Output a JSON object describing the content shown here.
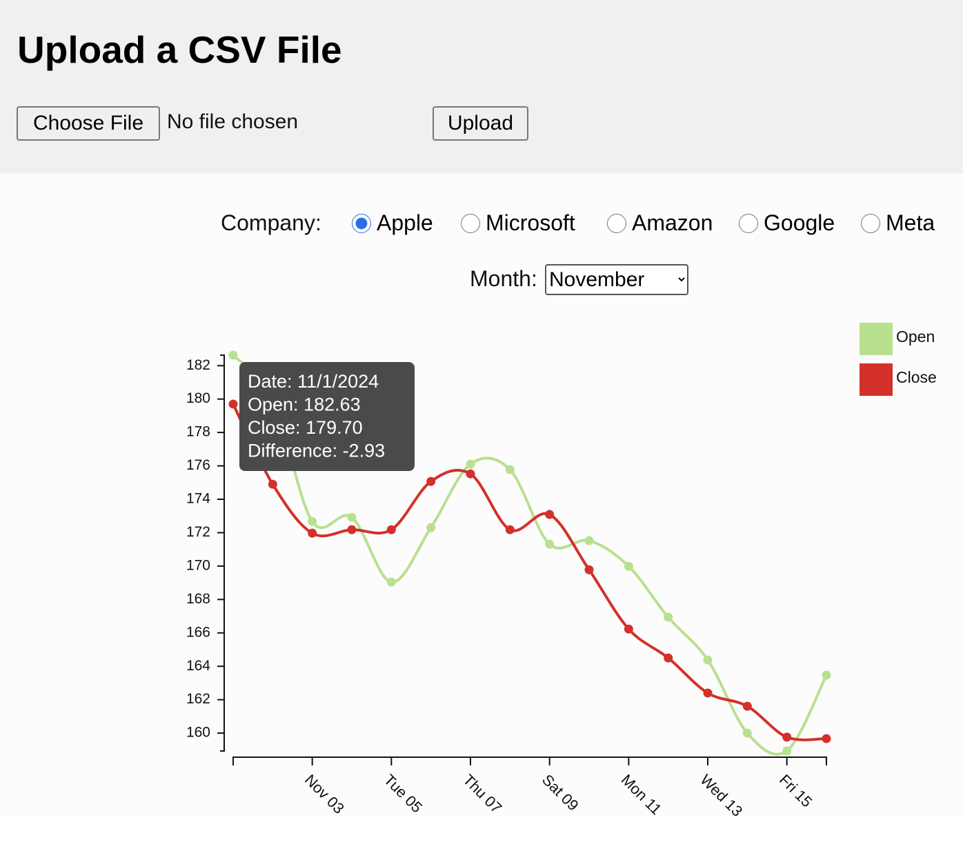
{
  "header": {
    "title": "Upload a CSV File"
  },
  "file_input": {
    "button": "Choose File",
    "status": "No file chosen"
  },
  "upload_button": "Upload",
  "company": {
    "label": "Company:",
    "options": [
      "Apple",
      "Microsoft",
      "Amazon",
      "Google",
      "Meta"
    ],
    "selected": "Apple"
  },
  "month": {
    "label": "Month:",
    "selected": "November"
  },
  "tooltip": {
    "lines": [
      "Date: 11/1/2024",
      "Open: 182.63",
      "Close: 179.70",
      "Difference: -2.93"
    ]
  },
  "chart_data": {
    "type": "line",
    "x": [
      "11/1/2024",
      "11/2/2024",
      "11/3/2024",
      "11/4/2024",
      "11/5/2024",
      "11/6/2024",
      "11/7/2024",
      "11/8/2024",
      "11/9/2024",
      "11/10/2024",
      "11/11/2024",
      "11/12/2024",
      "11/13/2024",
      "11/14/2024",
      "11/15/2024",
      "11/16/2024"
    ],
    "series": [
      {
        "name": "Open",
        "color": "#b9e08f",
        "values": [
          182.63,
          180.0,
          172.67,
          172.92,
          169.04,
          172.3,
          176.1,
          175.77,
          171.31,
          171.52,
          169.99,
          166.94,
          164.38,
          160.0,
          158.93,
          163.47
        ]
      },
      {
        "name": "Close",
        "color": "#d3302a",
        "values": [
          179.7,
          174.9,
          171.97,
          172.18,
          172.18,
          175.07,
          175.52,
          172.18,
          173.09,
          169.78,
          166.23,
          164.5,
          162.4,
          161.61,
          159.76,
          159.67
        ]
      }
    ],
    "xlim": [
      "11/1/2024",
      "11/16/2024"
    ],
    "xticks": [
      {
        "value": "11/3/2024",
        "label": "Nov 03"
      },
      {
        "value": "11/5/2024",
        "label": "Tue 05"
      },
      {
        "value": "11/7/2024",
        "label": "Thu 07"
      },
      {
        "value": "11/9/2024",
        "label": "Sat 09"
      },
      {
        "value": "11/11/2024",
        "label": "Mon 11"
      },
      {
        "value": "11/13/2024",
        "label": "Wed 13"
      },
      {
        "value": "11/15/2024",
        "label": "Fri 15"
      }
    ],
    "ylim": [
      158.93,
      182.63
    ],
    "yticks": [
      160,
      162,
      164,
      166,
      168,
      170,
      172,
      174,
      176,
      178,
      180,
      182
    ],
    "legend": "top-right"
  }
}
